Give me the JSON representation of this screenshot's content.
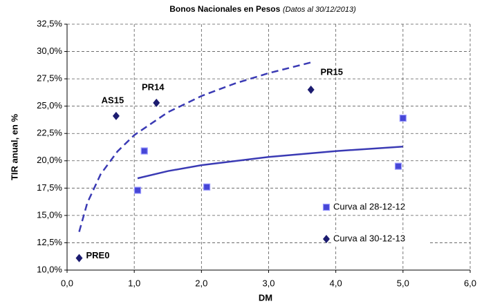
{
  "chart_data": {
    "type": "scatter",
    "title": "Bonos Nacionales en Pesos",
    "subtitle": "(Datos al 30/12/2013)",
    "xlabel": "DM",
    "ylabel": "TIR anual, en %",
    "xlim": [
      0,
      6
    ],
    "ylim": [
      10,
      32.5
    ],
    "xticks": [
      {
        "value": 0,
        "label": "0,0"
      },
      {
        "value": 1,
        "label": "1,0"
      },
      {
        "value": 2,
        "label": "2,0"
      },
      {
        "value": 3,
        "label": "3,0"
      },
      {
        "value": 4,
        "label": "4,0"
      },
      {
        "value": 5,
        "label": "5,0"
      },
      {
        "value": 6,
        "label": "6,0"
      }
    ],
    "yticks": [
      {
        "value": 10,
        "label": "10,0%"
      },
      {
        "value": 12.5,
        "label": "12,5%"
      },
      {
        "value": 15,
        "label": "15,0%"
      },
      {
        "value": 17.5,
        "label": "17,5%"
      },
      {
        "value": 20,
        "label": "20,0%"
      },
      {
        "value": 22.5,
        "label": "22,5%"
      },
      {
        "value": 25,
        "label": "25,0%"
      },
      {
        "value": 27.5,
        "label": "27,5%"
      },
      {
        "value": 30,
        "label": "30,0%"
      },
      {
        "value": 32.5,
        "label": "32,5%"
      }
    ],
    "grid": true,
    "legend": "lower right",
    "series": [
      {
        "name": "Curva al 28-12-12",
        "marker": "square",
        "color": "#4646d6",
        "x": [
          1.05,
          1.15,
          2.08,
          4.93,
          5.0
        ],
        "values": [
          17.3,
          20.9,
          17.6,
          19.5,
          23.9
        ],
        "trendline": {
          "style": "solid",
          "x": [
            1.05,
            1.5,
            2,
            3,
            4,
            5
          ],
          "values": [
            18.4,
            19.06,
            19.6,
            20.35,
            20.89,
            21.3
          ]
        }
      },
      {
        "name": "Curva al 30-12-13",
        "marker": "diamond",
        "color": "#1c1c70",
        "x": [
          0.18,
          0.73,
          1.33,
          3.63
        ],
        "values": [
          11.1,
          24.1,
          25.3,
          26.5
        ],
        "point_labels": [
          "PRE0",
          "AS15",
          "PR14",
          "PR15"
        ],
        "trendline": {
          "style": "dashed",
          "x": [
            0.18,
            0.3,
            0.5,
            0.75,
            1,
            1.5,
            2,
            2.5,
            3,
            3.63
          ],
          "values": [
            13.5,
            16.14,
            18.77,
            20.86,
            22.35,
            24.44,
            25.93,
            27.08,
            28.02,
            29.0
          ]
        }
      }
    ]
  }
}
